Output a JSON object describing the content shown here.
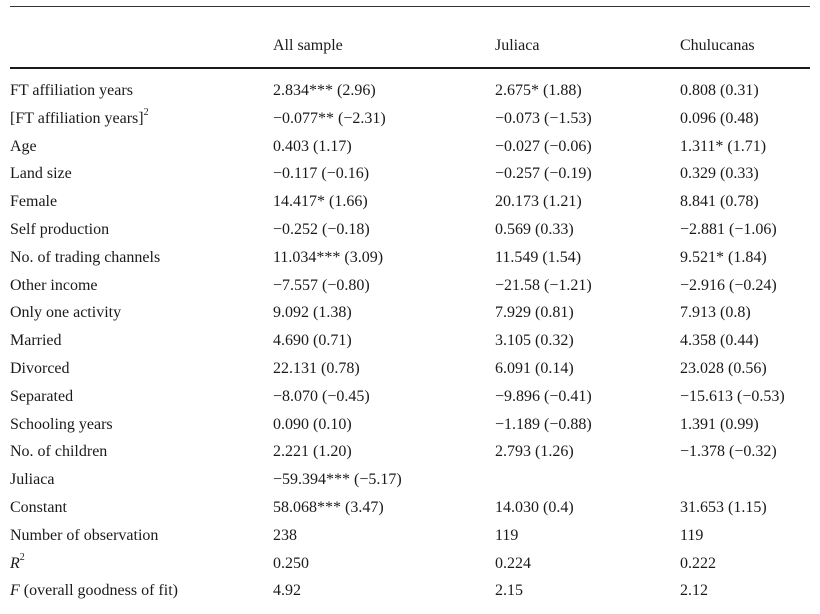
{
  "columns": {
    "label": "",
    "all": "All sample",
    "juliaca": "Juliaca",
    "chulucanas": "Chulucanas"
  },
  "rows": [
    {
      "label": "FT affiliation years",
      "all": "2.834*** (2.96)",
      "juliaca": "2.675* (1.88)",
      "chulucanas": "0.808 (0.31)"
    },
    {
      "label": "[FT affiliation years]",
      "label_sup": "2",
      "all": "−0.077** (−2.31)",
      "juliaca": "−0.073 (−1.53)",
      "chulucanas": "0.096 (0.48)"
    },
    {
      "label": "Age",
      "all": "0.403 (1.17)",
      "juliaca": "−0.027 (−0.06)",
      "chulucanas": "1.311* (1.71)"
    },
    {
      "label": "Land size",
      "all": "−0.117 (−0.16)",
      "juliaca": "−0.257 (−0.19)",
      "chulucanas": "0.329 (0.33)"
    },
    {
      "label": "Female",
      "all": "14.417* (1.66)",
      "juliaca": "20.173 (1.21)",
      "chulucanas": "8.841 (0.78)"
    },
    {
      "label": "Self production",
      "all": "−0.252 (−0.18)",
      "juliaca": "0.569 (0.33)",
      "chulucanas": "−2.881 (−1.06)"
    },
    {
      "label": "No. of trading channels",
      "all": "11.034*** (3.09)",
      "juliaca": "11.549 (1.54)",
      "chulucanas": "9.521* (1.84)"
    },
    {
      "label": "Other income",
      "all": "−7.557 (−0.80)",
      "juliaca": "−21.58 (−1.21)",
      "chulucanas": "−2.916 (−0.24)"
    },
    {
      "label": "Only one activity",
      "all": "9.092 (1.38)",
      "juliaca": "7.929 (0.81)",
      "chulucanas": "7.913 (0.8)"
    },
    {
      "label": "Married",
      "all": "4.690 (0.71)",
      "juliaca": "3.105 (0.32)",
      "chulucanas": "4.358 (0.44)"
    },
    {
      "label": "Divorced",
      "all": "22.131 (0.78)",
      "juliaca": "6.091 (0.14)",
      "chulucanas": "23.028 (0.56)"
    },
    {
      "label": "Separated",
      "all": "−8.070 (−0.45)",
      "juliaca": "−9.896 (−0.41)",
      "chulucanas": "−15.613 (−0.53)"
    },
    {
      "label": "Schooling years",
      "all": "0.090 (0.10)",
      "juliaca": "−1.189 (−0.88)",
      "chulucanas": "1.391 (0.99)"
    },
    {
      "label": "No. of children",
      "all": "2.221 (1.20)",
      "juliaca": "2.793 (1.26)",
      "chulucanas": "−1.378 (−0.32)"
    },
    {
      "label": "Juliaca",
      "all": "−59.394*** (−5.17)",
      "juliaca": "",
      "chulucanas": ""
    },
    {
      "label": "Constant",
      "all": "58.068*** (3.47)",
      "juliaca": "14.030 (0.4)",
      "chulucanas": "31.653 (1.15)"
    },
    {
      "label": "Number of observation",
      "all": "238",
      "juliaca": "119",
      "chulucanas": "119"
    },
    {
      "label_ital": "R",
      "label_sup": "2",
      "all": "0.250",
      "juliaca": "0.224",
      "chulucanas": "0.222"
    },
    {
      "label_ital": "F",
      "label": " (overall goodness of fit)",
      "all": "4.92",
      "juliaca": "2.15",
      "chulucanas": "2.12"
    }
  ]
}
